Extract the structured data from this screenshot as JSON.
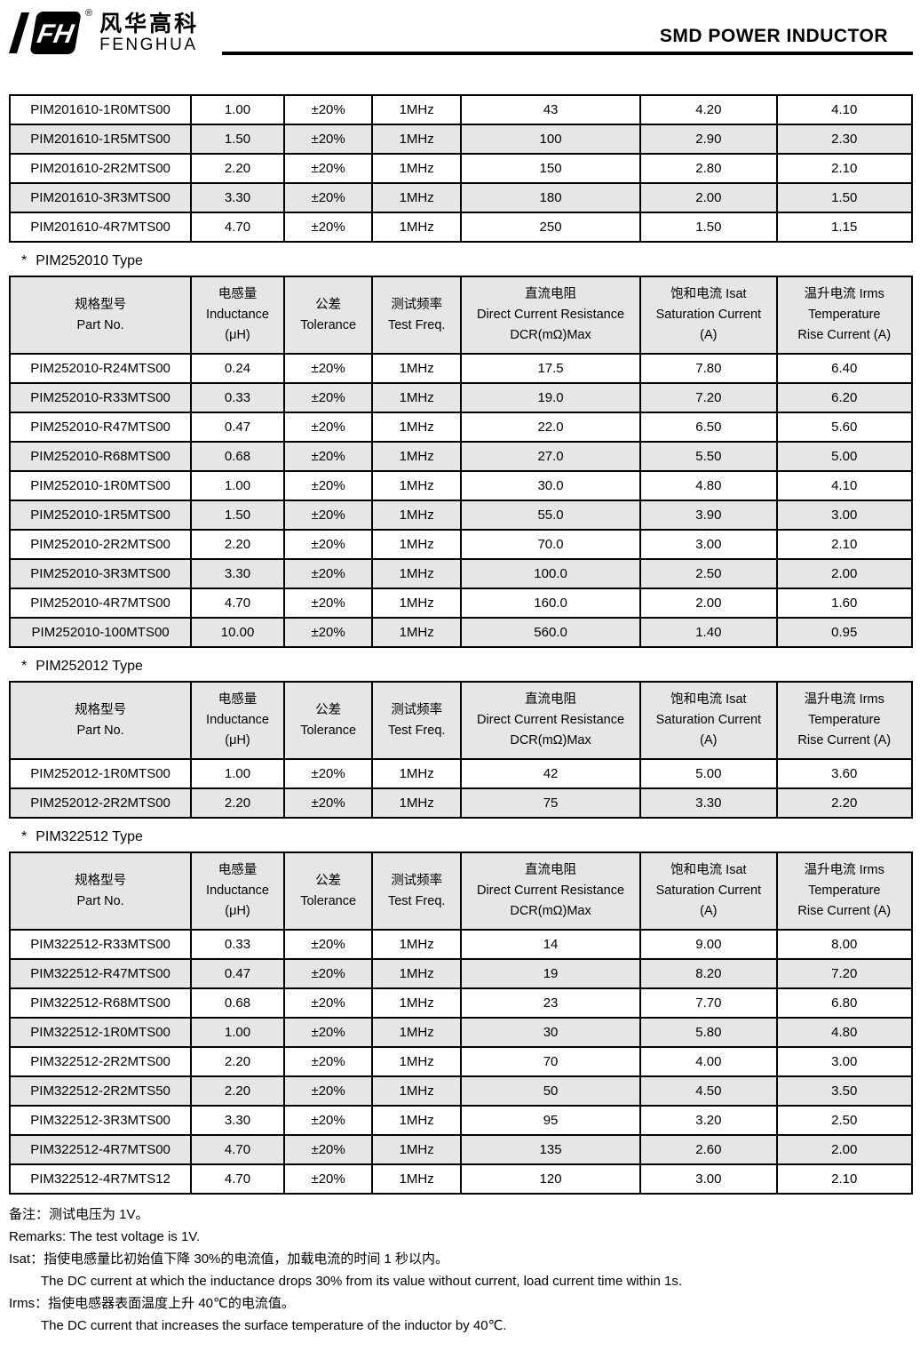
{
  "header": {
    "brand_cn": "风华高科",
    "brand_en": "FENGHUA",
    "registered": "®",
    "title": "SMD POWER INDUCTOR"
  },
  "columns": [
    {
      "lines": [
        "规格型号",
        "Part No."
      ]
    },
    {
      "lines": [
        "电感量",
        "Inductance",
        "(μH)"
      ]
    },
    {
      "lines": [
        "公差",
        "Tolerance"
      ]
    },
    {
      "lines": [
        "测试频率",
        "Test Freq."
      ]
    },
    {
      "lines": [
        "直流电阻",
        "Direct Current Resistance",
        "DCR(mΩ)Max"
      ]
    },
    {
      "lines": [
        "饱和电流  Isat",
        "Saturation Current",
        "(A)"
      ]
    },
    {
      "lines": [
        "温升电流  Irms",
        "Temperature",
        "Rise Current (A)"
      ]
    }
  ],
  "sections": {
    "pim252010": {
      "marker": "*",
      "title": "PIM252010 Type"
    },
    "pim252012": {
      "marker": "*",
      "title": "PIM252012 Type"
    },
    "pim322512": {
      "marker": "*",
      "title": "PIM322512 Type"
    }
  },
  "tables": {
    "pim201610": {
      "has_header": false,
      "rows": [
        [
          "PIM201610-1R0MTS00",
          "1.00",
          "±20%",
          "1MHz",
          "43",
          "4.20",
          "4.10"
        ],
        [
          "PIM201610-1R5MTS00",
          "1.50",
          "±20%",
          "1MHz",
          "100",
          "2.90",
          "2.30"
        ],
        [
          "PIM201610-2R2MTS00",
          "2.20",
          "±20%",
          "1MHz",
          "150",
          "2.80",
          "2.10"
        ],
        [
          "PIM201610-3R3MTS00",
          "3.30",
          "±20%",
          "1MHz",
          "180",
          "2.00",
          "1.50"
        ],
        [
          "PIM201610-4R7MTS00",
          "4.70",
          "±20%",
          "1MHz",
          "250",
          "1.50",
          "1.15"
        ]
      ]
    },
    "pim252010": {
      "has_header": true,
      "rows": [
        [
          "PIM252010-R24MTS00",
          "0.24",
          "±20%",
          "1MHz",
          "17.5",
          "7.80",
          "6.40"
        ],
        [
          "PIM252010-R33MTS00",
          "0.33",
          "±20%",
          "1MHz",
          "19.0",
          "7.20",
          "6.20"
        ],
        [
          "PIM252010-R47MTS00",
          "0.47",
          "±20%",
          "1MHz",
          "22.0",
          "6.50",
          "5.60"
        ],
        [
          "PIM252010-R68MTS00",
          "0.68",
          "±20%",
          "1MHz",
          "27.0",
          "5.50",
          "5.00"
        ],
        [
          "PIM252010-1R0MTS00",
          "1.00",
          "±20%",
          "1MHz",
          "30.0",
          "4.80",
          "4.10"
        ],
        [
          "PIM252010-1R5MTS00",
          "1.50",
          "±20%",
          "1MHz",
          "55.0",
          "3.90",
          "3.00"
        ],
        [
          "PIM252010-2R2MTS00",
          "2.20",
          "±20%",
          "1MHz",
          "70.0",
          "3.00",
          "2.10"
        ],
        [
          "PIM252010-3R3MTS00",
          "3.30",
          "±20%",
          "1MHz",
          "100.0",
          "2.50",
          "2.00"
        ],
        [
          "PIM252010-4R7MTS00",
          "4.70",
          "±20%",
          "1MHz",
          "160.0",
          "2.00",
          "1.60"
        ],
        [
          "PIM252010-100MTS00",
          "10.00",
          "±20%",
          "1MHz",
          "560.0",
          "1.40",
          "0.95"
        ]
      ]
    },
    "pim252012": {
      "has_header": true,
      "rows": [
        [
          "PIM252012-1R0MTS00",
          "1.00",
          "±20%",
          "1MHz",
          "42",
          "5.00",
          "3.60"
        ],
        [
          "PIM252012-2R2MTS00",
          "2.20",
          "±20%",
          "1MHz",
          "75",
          "3.30",
          "2.20"
        ]
      ]
    },
    "pim322512": {
      "has_header": true,
      "rows": [
        [
          "PIM322512-R33MTS00",
          "0.33",
          "±20%",
          "1MHz",
          "14",
          "9.00",
          "8.00"
        ],
        [
          "PIM322512-R47MTS00",
          "0.47",
          "±20%",
          "1MHz",
          "19",
          "8.20",
          "7.20"
        ],
        [
          "PIM322512-R68MTS00",
          "0.68",
          "±20%",
          "1MHz",
          "23",
          "7.70",
          "6.80"
        ],
        [
          "PIM322512-1R0MTS00",
          "1.00",
          "±20%",
          "1MHz",
          "30",
          "5.80",
          "4.80"
        ],
        [
          "PIM322512-2R2MTS00",
          "2.20",
          "±20%",
          "1MHz",
          "70",
          "4.00",
          "3.00"
        ],
        [
          "PIM322512-2R2MTS50",
          "2.20",
          "±20%",
          "1MHz",
          "50",
          "4.50",
          "3.50"
        ],
        [
          "PIM322512-3R3MTS00",
          "3.30",
          "±20%",
          "1MHz",
          "95",
          "3.20",
          "2.50"
        ],
        [
          "PIM322512-4R7MTS00",
          "4.70",
          "±20%",
          "1MHz",
          "135",
          "2.60",
          "2.00"
        ],
        [
          "PIM322512-4R7MTS12",
          "4.70",
          "±20%",
          "1MHz",
          "120",
          "3.00",
          "2.10"
        ]
      ]
    }
  },
  "footnotes": [
    "备注：测试电压为 1V。",
    "Remarks: The test voltage is 1V.",
    "Isat：指使电感量比初始值下降 30%的电流值，加载电流的时间 1 秒以内。",
    "The DC current at which the inductance drops 30% from its value without current, load current time within 1s.",
    "Irms：指使电感器表面温度上升 40℃的电流值。",
    "The DC current that increases the surface temperature of the inductor by 40℃."
  ]
}
